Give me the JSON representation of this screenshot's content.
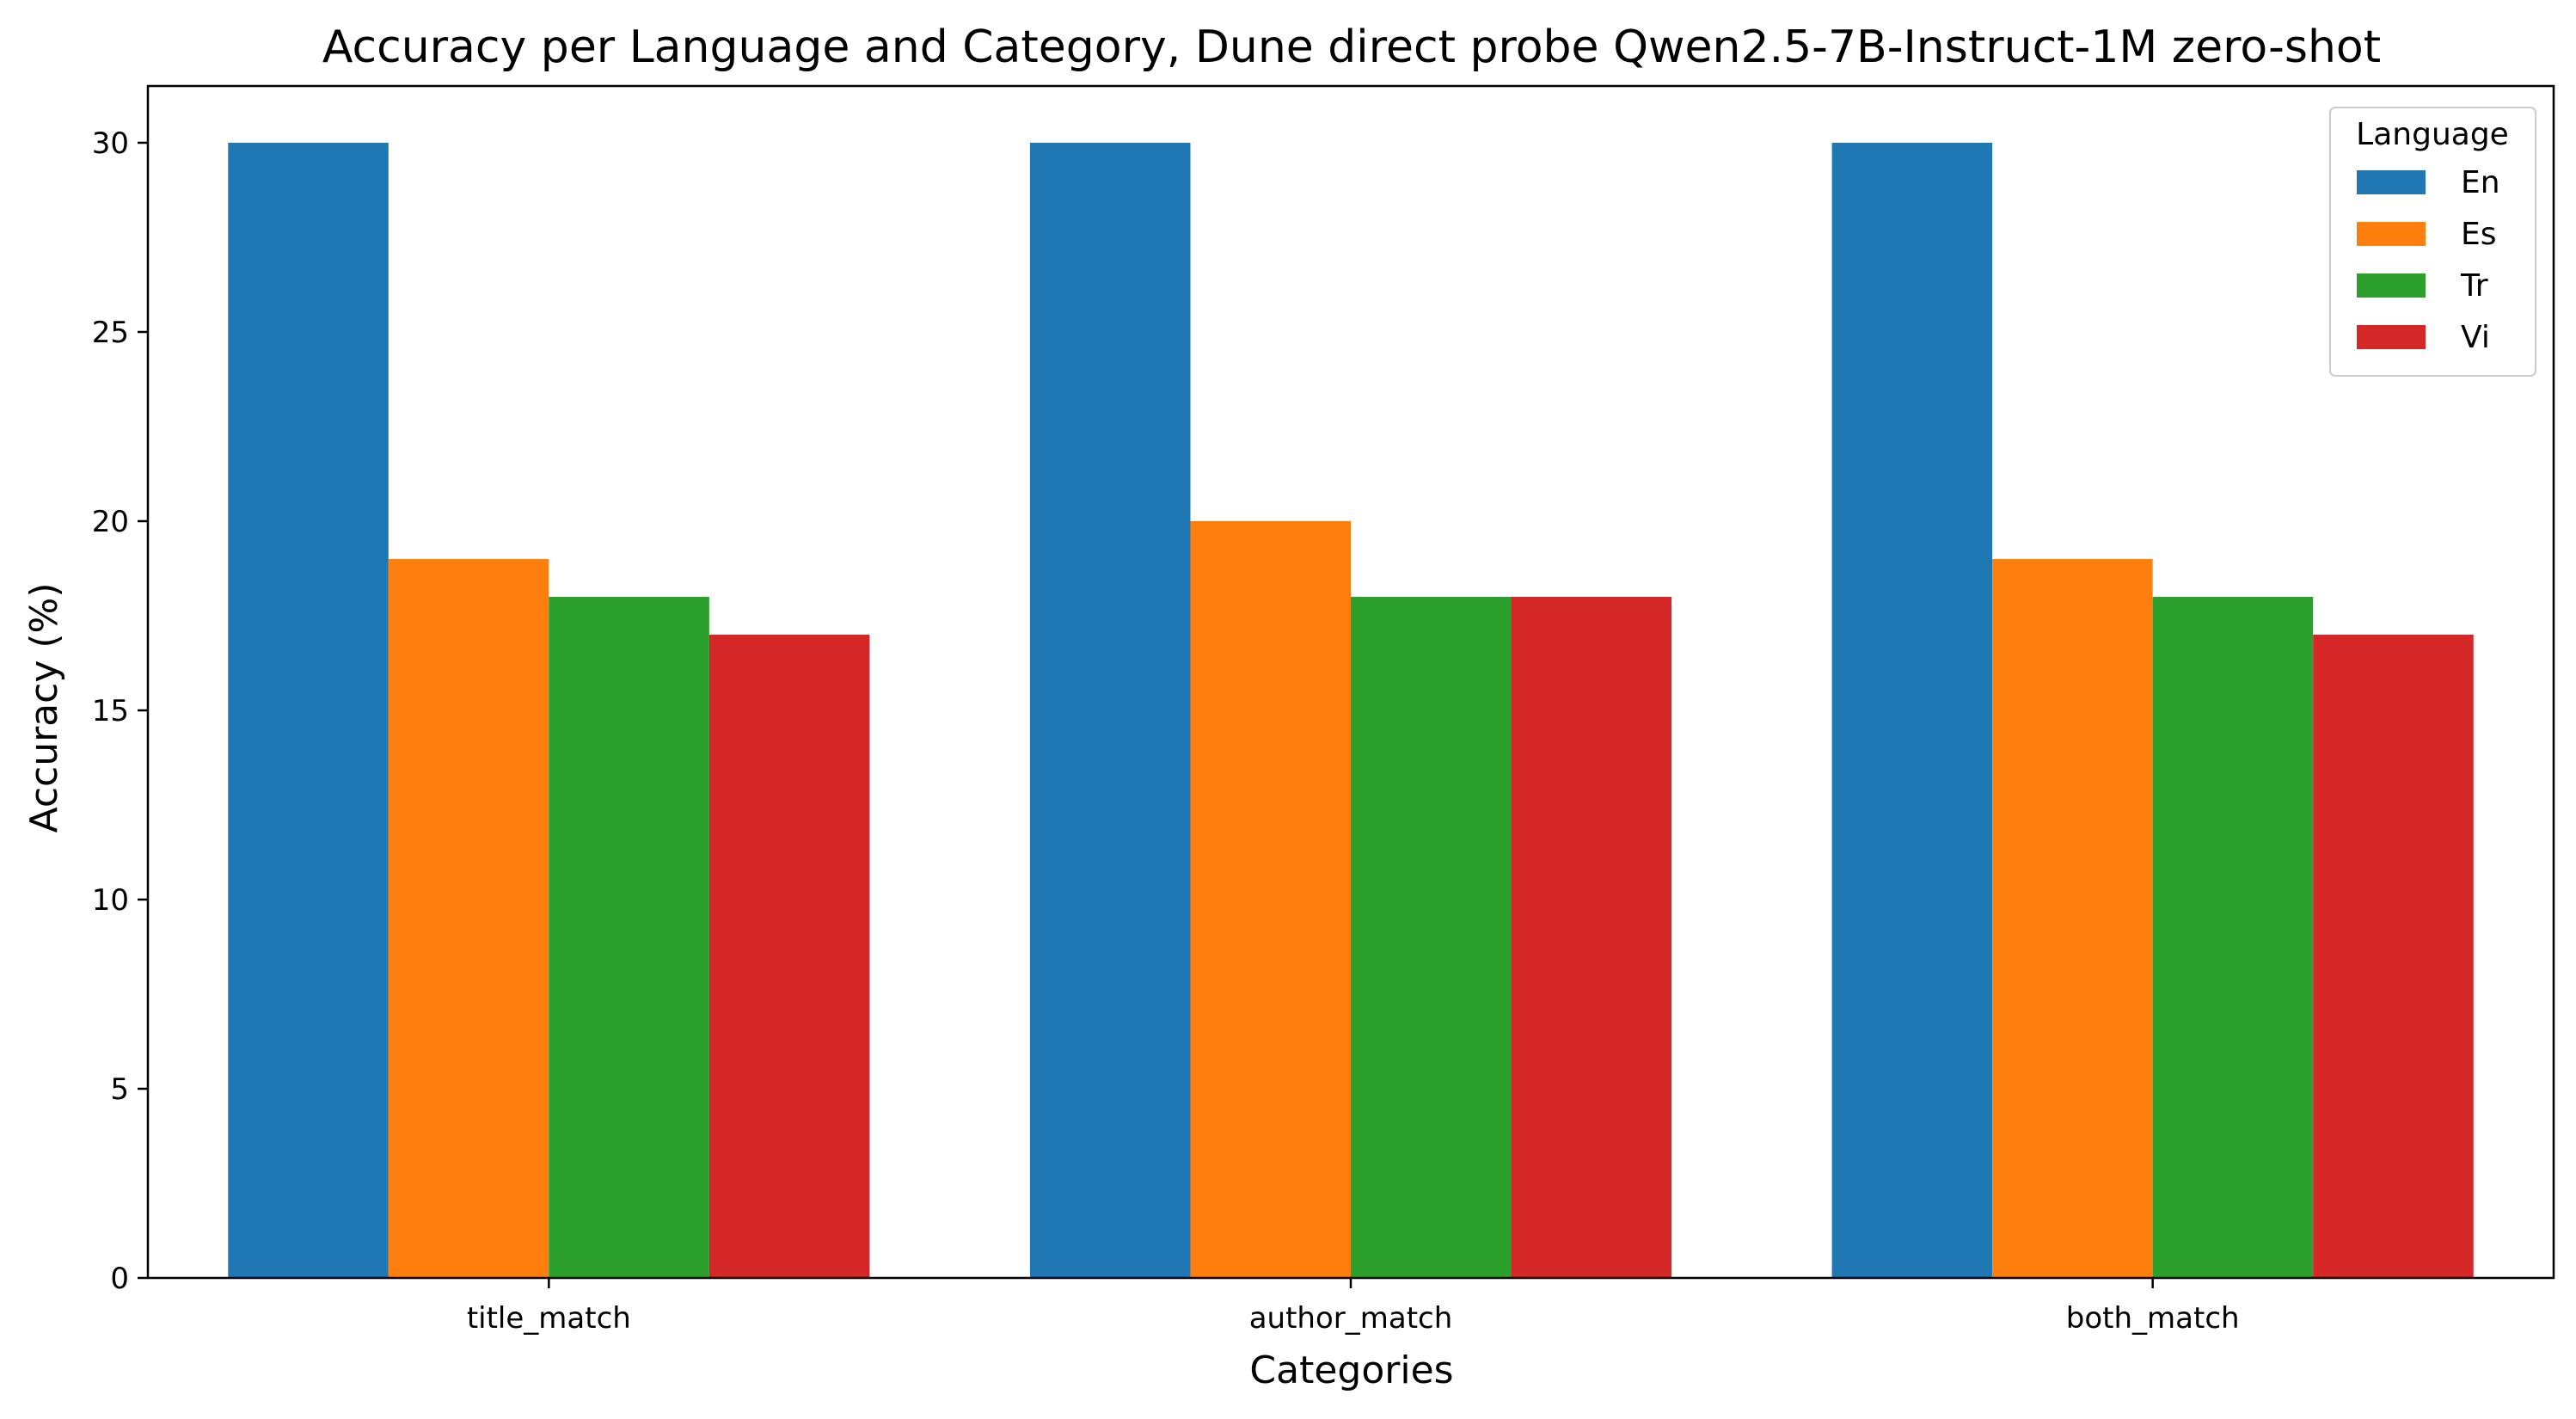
{
  "chart_data": {
    "type": "bar",
    "title": "Accuracy per Language and Category, Dune direct probe Qwen2.5-7B-Instruct-1M zero-shot",
    "xlabel": "Categories",
    "ylabel": "Accuracy (%)",
    "categories": [
      "title_match",
      "author_match",
      "both_match"
    ],
    "series": [
      {
        "name": "En",
        "color": "#1f77b4",
        "values": [
          30,
          30,
          30
        ]
      },
      {
        "name": "Es",
        "color": "#ff7f0e",
        "values": [
          19,
          20,
          19
        ]
      },
      {
        "name": "Tr",
        "color": "#2ca02c",
        "values": [
          18,
          18,
          18
        ]
      },
      {
        "name": "Vi",
        "color": "#d62728",
        "values": [
          17,
          18,
          17
        ]
      }
    ],
    "ylim": [
      0,
      31.5
    ],
    "yticks": [
      0,
      5,
      10,
      15,
      20,
      25,
      30
    ],
    "grid": false,
    "legend": {
      "title": "Language",
      "placement": "top-right"
    }
  }
}
